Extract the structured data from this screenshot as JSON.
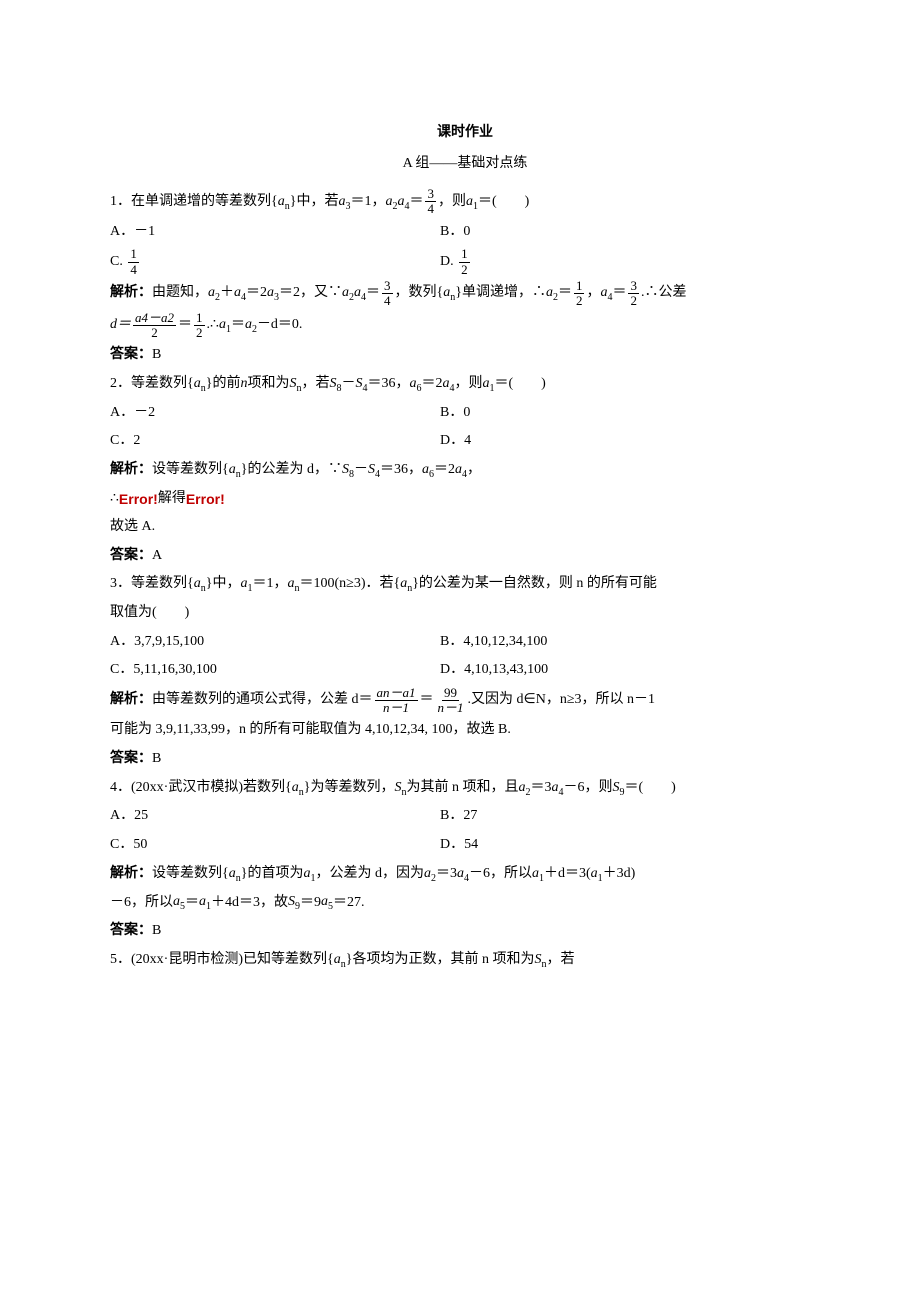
{
  "title": "课时作业",
  "subtitle": "A 组——基础对点练",
  "q1": {
    "stem_a": "1．在单调递增的等差数列{",
    "an": "a",
    "nsub": "n",
    "stem_b": "}中，若 ",
    "a3": "a",
    "sub3": "3",
    "eq1": "＝1，",
    "a2": "a",
    "sub2": "2",
    "a4": "a",
    "sub4": "4",
    "eq2": "＝",
    "frac1_num": "3",
    "frac1_den": "4",
    "stem_c": "，则 ",
    "a1": "a",
    "sub1": "1",
    "stem_d": "＝(　　)",
    "optA": "A．－1",
    "optB": "B．0",
    "optC_pre": "C.",
    "optC_num": "1",
    "optC_den": "4",
    "optD_pre": "D.",
    "optD_num": "1",
    "optD_den": "2",
    "sol_pre": "解析：",
    "sol_a": "由题知，",
    "sol_b": "＋",
    "sol_c": "＝2",
    "sol_d": "＝2，又∵",
    "sol_e": "＝",
    "sol_f": "，数列{",
    "sol_g": "}单调递增，∴",
    "sol_h": "＝",
    "sol_i": "，",
    "sol_j": "＝",
    "sol_k": ".∴公差",
    "f2_num": "1",
    "f2_den": "2",
    "f3_num": "3",
    "f3_den": "2",
    "line2_a": "d＝",
    "line2_num": "a4－a2",
    "line2_den": "2",
    "line2_b": "＝",
    "line2_c": ".∴",
    "line2_d": "＝",
    "line2_e": "－d＝0.",
    "ans_pre": "答案：",
    "ans": "B"
  },
  "q2": {
    "stem_a": "2．等差数列{",
    "stem_b": "}的前 ",
    "stem_c": " 项和为 ",
    "Sn": "S",
    "stem_d": "，若 ",
    "S8": "S",
    "sub8": "8",
    "minus": "－",
    "S4": "S",
    "sub4": "4",
    "stem_e": "＝36，",
    "a6": "a",
    "sub6": "6",
    "eq2": "＝2",
    "a4": "a",
    "stem_f": "，则 ",
    "a1": "a",
    "sub1": "1",
    "stem_g": "＝(　　)",
    "optA": "A．－2",
    "optB": "B．0",
    "optC": "C．2",
    "optD": "D．4",
    "sol_pre": "解析：",
    "sol_a": "设等差数列{",
    "sol_b": "}的公差为 d，∵",
    "sol_c": "－",
    "sol_d": "＝36，",
    "sol_e": "＝2",
    "sol_f": "，",
    "err_pre": "∴",
    "err1": "Error!",
    "err_mid": "解得",
    "err2": "Error!",
    "concl": "故选 A.",
    "ans_pre": "答案：",
    "ans": "A"
  },
  "q3": {
    "stem_a": "3．等差数列{",
    "stem_b": "}中，",
    "stem_c": "＝1，",
    "stem_d": "＝100(n≥3)．若{",
    "stem_e": "}的公差为某一自然数，则 n 的所有可能",
    "stem_f": "取值为(　　)",
    "optA": "A．3,7,9,15,100",
    "optB": "B．4,10,12,34,100",
    "optC": "C．5,11,16,30,100",
    "optD": "D．4,10,13,43,100",
    "sol_pre": "解析：",
    "sol_a": "由等差数列的通项公式得，公差 d＝",
    "f1_num": "an－a1",
    "f1_den": "n－1",
    "sol_b": "＝",
    "f2_num": "99",
    "f2_den": "n－1",
    "sol_c": ".又因为 d∈N，n≥3，所以 n－1",
    "sol_d": "可能为 3,9,11,33,99，n 的所有可能取值为 4,10,12,34, 100，故选 B.",
    "ans_pre": "答案：",
    "ans": "B"
  },
  "q4": {
    "stem_a": "4．(20xx·武汉市模拟)若数列{",
    "stem_b": "}为等差数列，",
    "stem_c": "为其前 n 项和，且 ",
    "a2": "a",
    "sub2": "2",
    "eq1": "＝3",
    "a4": "a",
    "sub4": "4",
    "stem_d": "－6，则 ",
    "S9": "S",
    "sub9": "9",
    "stem_e": "＝(　　)",
    "optA": "A．25",
    "optB": "B．27",
    "optC": "C．50",
    "optD": "D．54",
    "sol_pre": "解析：",
    "sol_a": "设等差数列{",
    "sol_b": "}的首项为 ",
    "sol_c": "，公差为 d，因为 ",
    "sol_d": "＝3",
    "sol_e": "－6，所以 ",
    "sol_f": "＋d＝3(",
    "sol_g": "＋3d)",
    "sol_h": "－6，所以 ",
    "a5": "a",
    "sub5": "5",
    "sol_i": "＝",
    "sol_j": "＋4d＝3，故 ",
    "sol_k": "＝9",
    "sol_l": "＝27.",
    "ans_pre": "答案：",
    "ans": "B"
  },
  "q5": {
    "stem_a": "5．(20xx·昆明市检测)已知等差数列{",
    "stem_b": "}各项均为正数，其前 n 项和为 ",
    "stem_c": "，若"
  }
}
